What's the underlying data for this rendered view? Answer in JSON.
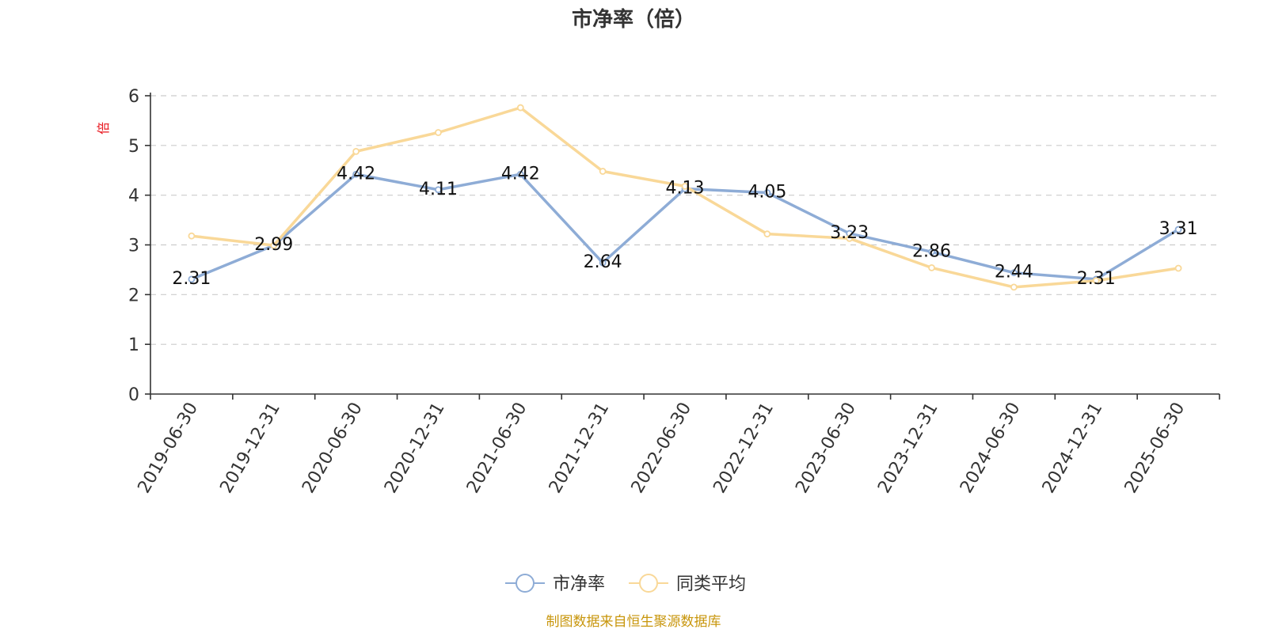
{
  "chart_data": {
    "type": "line",
    "title": "市净率（倍）",
    "ylabel": "倍",
    "ylim": [
      0,
      6
    ],
    "yticks": [
      "0",
      "1",
      "2",
      "3",
      "4",
      "5",
      "6"
    ],
    "grid": true,
    "legend_position": "bottom-center",
    "categories": [
      "2019-06-30",
      "2019-12-31",
      "2020-06-30",
      "2020-12-31",
      "2021-06-30",
      "2021-12-31",
      "2022-06-30",
      "2022-12-31",
      "2023-06-30",
      "2023-12-31",
      "2024-06-30",
      "2024-12-31",
      "2025-06-30"
    ],
    "series": [
      {
        "name": "市净率",
        "color": "#8eacd6",
        "values": [
          2.31,
          2.99,
          4.42,
          4.11,
          4.42,
          2.64,
          4.13,
          4.05,
          3.23,
          2.86,
          2.44,
          2.31,
          3.31
        ],
        "labels": [
          "2.31",
          "2.99",
          "4.42",
          "4.11",
          "4.42",
          "2.64",
          "4.13",
          "4.05",
          "3.23",
          "2.86",
          "2.44",
          "2.31",
          "3.31"
        ]
      },
      {
        "name": "同类平均",
        "color": "#f9d898",
        "values": [
          3.18,
          2.99,
          4.88,
          5.26,
          5.76,
          4.48,
          4.18,
          3.22,
          3.13,
          2.54,
          2.15,
          2.28,
          2.53
        ]
      }
    ]
  },
  "footer": {
    "text": "制图数据来自恒生聚源数据库",
    "color": "#c8960c"
  }
}
